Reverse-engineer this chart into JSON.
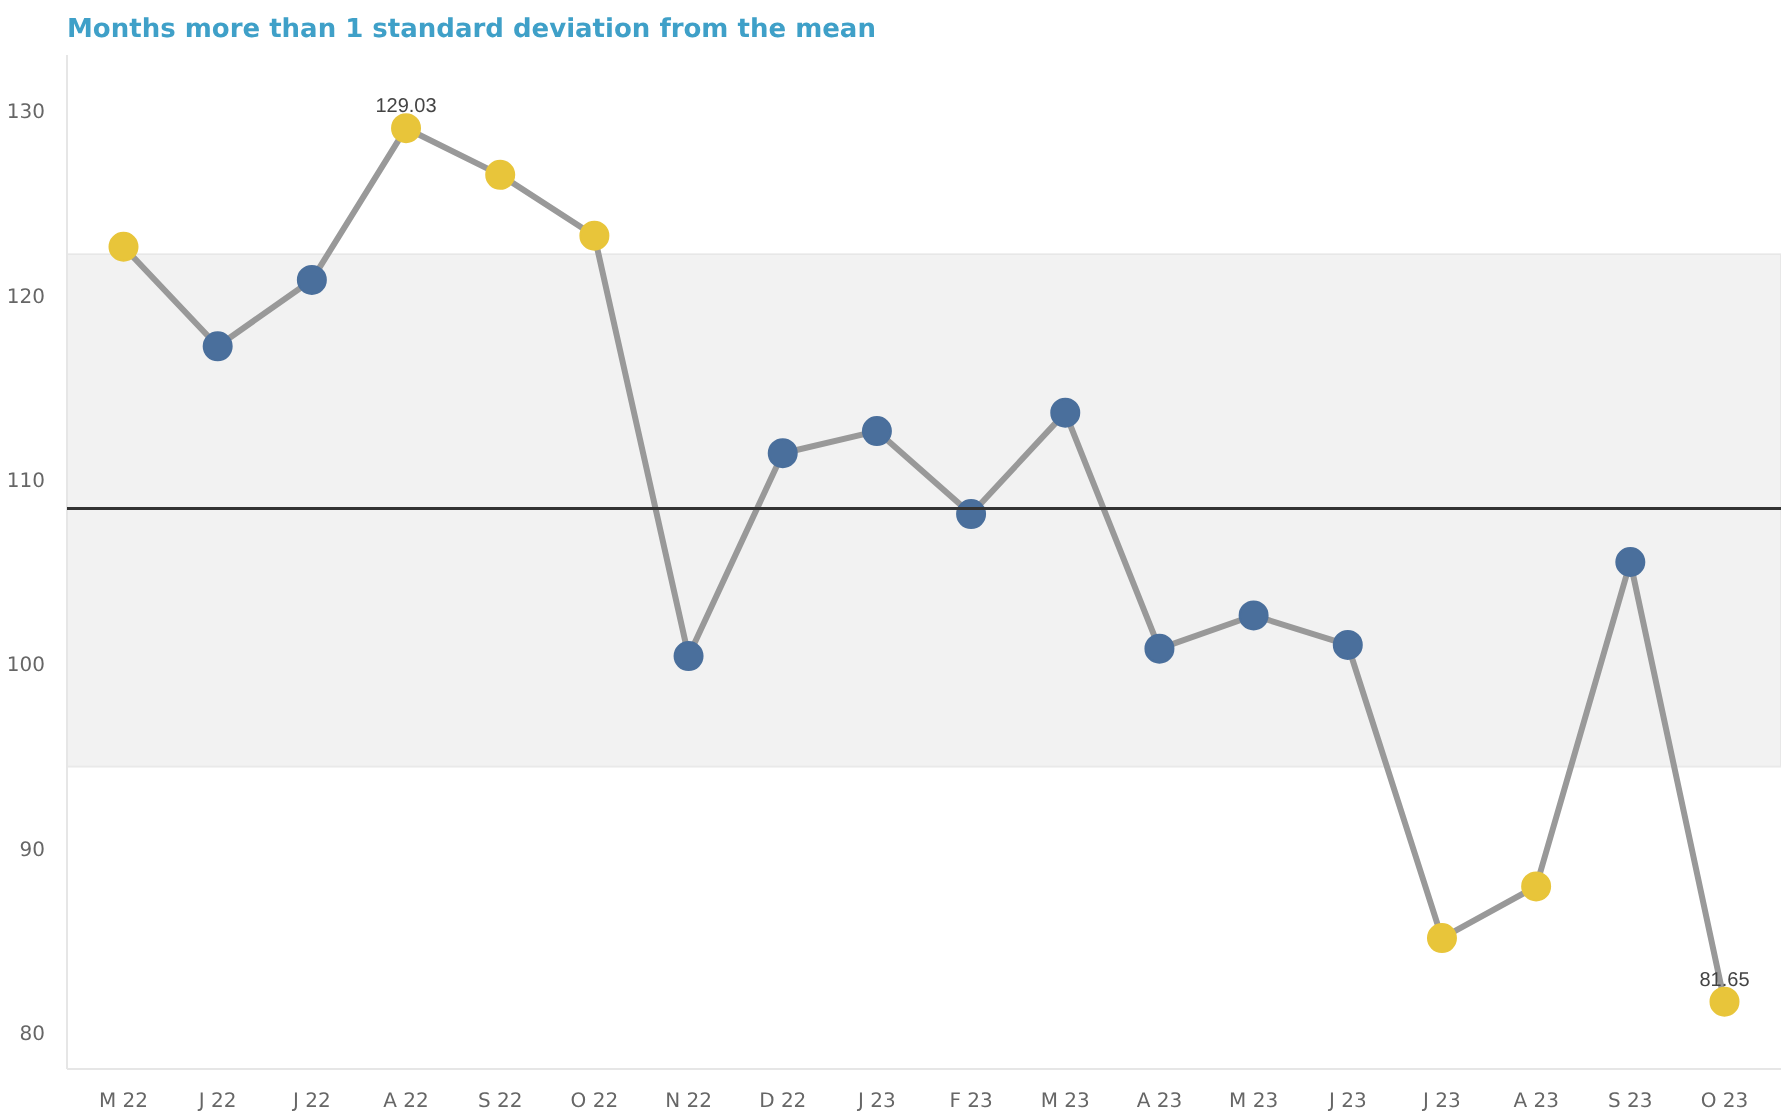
{
  "chart_data": {
    "type": "line",
    "title": "Months more than 1 standard deviation from the mean",
    "categories": [
      "M 22",
      "J 22",
      "J 22",
      "A 22",
      "S 22",
      "O 22",
      "N 22",
      "D 22",
      "J 23",
      "F 23",
      "M 23",
      "A 23",
      "M 23",
      "J 23",
      "J 23",
      "A 23",
      "S 23",
      "O 23"
    ],
    "series": [
      {
        "color": "#999999",
        "values": [
          122.6,
          117.2,
          120.8,
          129.03,
          126.5,
          123.2,
          100.4,
          111.4,
          112.6,
          108.1,
          113.6,
          100.8,
          102.6,
          101.0,
          85.1,
          87.9,
          105.5,
          81.65
        ],
        "colors": [
          "#e8c53a",
          "#4a6f9c",
          "#4a6f9c",
          "#e8c53a",
          "#e8c53a",
          "#e8c53a",
          "#4a6f9c",
          "#4a6f9c",
          "#4a6f9c",
          "#4a6f9c",
          "#4a6f9c",
          "#4a6f9c",
          "#4a6f9c",
          "#4a6f9c",
          "#e8c53a",
          "#e8c53a",
          "#4a6f9c",
          "#e8c53a"
        ],
        "value_labels": [
          null,
          null,
          null,
          "129.03",
          null,
          null,
          null,
          null,
          null,
          null,
          null,
          null,
          null,
          null,
          null,
          null,
          null,
          "81.65"
        ]
      }
    ],
    "ylim": [
      78,
      133
    ],
    "yticks": [
      80,
      90,
      100,
      110,
      120,
      130
    ],
    "grid": false,
    "marker": "circle",
    "line_style": "solid",
    "ref_lines": [
      {
        "axis": "y",
        "value": 108.4,
        "color": "#333333"
      }
    ],
    "bands": [
      {
        "axis": "y",
        "from": 94.4,
        "to": 122.2,
        "color": "#f2f2f2"
      }
    ]
  }
}
